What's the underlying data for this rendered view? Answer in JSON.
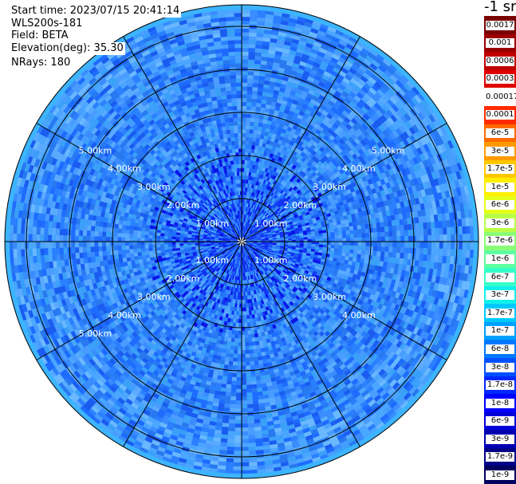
{
  "info": {
    "start_time": "Start time: 2023/07/15 20:41:14",
    "instrument": "WLS200s-181",
    "field": "Field: BETA",
    "elevation": "Elevation(deg): 35.30",
    "nrays": "NRays: 180"
  },
  "map": {
    "max_range_km": 5.5,
    "ring_labels": [
      "1.00km",
      "2.00km",
      "3.00km",
      "4.00km",
      "5.00km"
    ],
    "spoke_count": 12
  },
  "colorbar": {
    "title": "-1 sr",
    "entries": [
      {
        "label": "0.0017",
        "color": "#7a0000"
      },
      {
        "label": "0.001",
        "color": "#9b0000"
      },
      {
        "label": "0.0006",
        "color": "#c00000"
      },
      {
        "label": "0.0003",
        "color": "#e00000"
      },
      {
        "label": "0.00017",
        "color": "#ffffff"
      },
      {
        "label": "0.0001",
        "color": "#ff2a00"
      },
      {
        "label": "6e-5",
        "color": "#ff6a00"
      },
      {
        "label": "3e-5",
        "color": "#ff9a00"
      },
      {
        "label": "1.7e-5",
        "color": "#ffc800"
      },
      {
        "label": "1e-5",
        "color": "#ffee00"
      },
      {
        "label": "6e-6",
        "color": "#e6ff1a"
      },
      {
        "label": "3e-6",
        "color": "#b8ff48"
      },
      {
        "label": "1.7e-6",
        "color": "#8aff75"
      },
      {
        "label": "1e-6",
        "color": "#5effa0"
      },
      {
        "label": "6e-7",
        "color": "#35ffc8"
      },
      {
        "label": "3e-7",
        "color": "#12f0ec"
      },
      {
        "label": "1.7e-7",
        "color": "#00c8ff"
      },
      {
        "label": "1e-7",
        "color": "#00a0ff"
      },
      {
        "label": "6e-8",
        "color": "#0078ff"
      },
      {
        "label": "3e-8",
        "color": "#0050ff"
      },
      {
        "label": "1.7e-8",
        "color": "#0028ff"
      },
      {
        "label": "1e-8",
        "color": "#0000ff"
      },
      {
        "label": "6e-9",
        "color": "#0000d8"
      },
      {
        "label": "3e-9",
        "color": "#0000b0"
      },
      {
        "label": "1.7e-9",
        "color": "#000088"
      },
      {
        "label": "1e-9",
        "color": "#00005e"
      }
    ]
  }
}
